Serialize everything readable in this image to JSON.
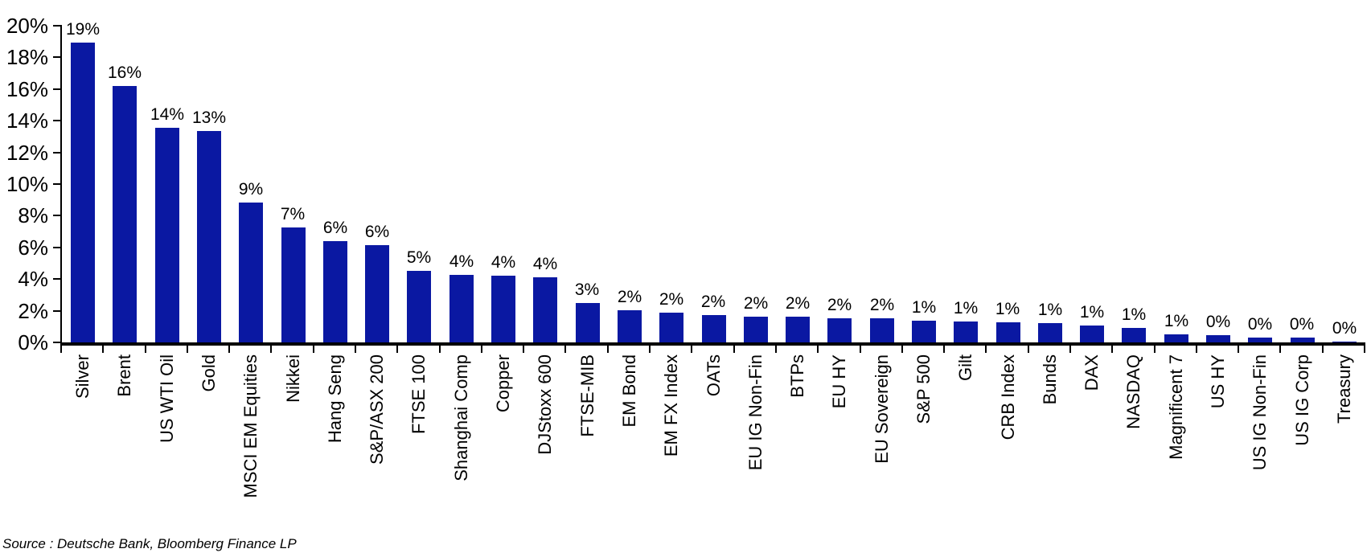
{
  "chart_data": {
    "type": "bar",
    "title": "",
    "xlabel": "",
    "ylabel": "",
    "ylim": [
      0,
      20
    ],
    "grid": false,
    "legend_position": "none",
    "bar_color": "#0a18a2",
    "axis_color": "#000000",
    "categories": [
      "Silver",
      "Brent",
      "US WTI Oil",
      "Gold",
      "MSCI EM Equities",
      "Nikkei",
      "Hang Seng",
      "S&P/ASX 200",
      "FTSE 100",
      "Shanghai Comp",
      "Copper",
      "DJStoxx 600",
      "FTSE-MIB",
      "EM Bond",
      "EM FX Index",
      "OATs",
      "EU IG Non-Fin",
      "BTPs",
      "EU HY",
      "EU Sovereign",
      "S&P 500",
      "Gilt",
      "CRB Index",
      "Bunds",
      "DAX",
      "NASDAQ",
      "Magnificent 7",
      "US HY",
      "US IG Non-Fin",
      "US IG Corp",
      "Treasury"
    ],
    "values": [
      18.95,
      16.2,
      13.55,
      13.35,
      8.85,
      7.25,
      6.4,
      6.15,
      4.5,
      4.25,
      4.2,
      4.1,
      2.5,
      2.05,
      1.9,
      1.75,
      1.6,
      1.6,
      1.5,
      1.5,
      1.35,
      1.3,
      1.25,
      1.2,
      1.05,
      0.9,
      0.5,
      0.45,
      0.3,
      0.28,
      0.05
    ],
    "value_labels": [
      "19%",
      "16%",
      "14%",
      "13%",
      "9%",
      "7%",
      "6%",
      "6%",
      "5%",
      "4%",
      "4%",
      "4%",
      "3%",
      "2%",
      "2%",
      "2%",
      "2%",
      "2%",
      "2%",
      "2%",
      "1%",
      "1%",
      "1%",
      "1%",
      "1%",
      "1%",
      "1%",
      "0%",
      "0%",
      "0%",
      "0%"
    ],
    "yticks": [
      {
        "value": 0,
        "label": "0%"
      },
      {
        "value": 2,
        "label": "2%"
      },
      {
        "value": 4,
        "label": "4%"
      },
      {
        "value": 6,
        "label": "6%"
      },
      {
        "value": 8,
        "label": "8%"
      },
      {
        "value": 10,
        "label": "10%"
      },
      {
        "value": 12,
        "label": "12%"
      },
      {
        "value": 14,
        "label": "14%"
      },
      {
        "value": 16,
        "label": "16%"
      },
      {
        "value": 18,
        "label": "18%"
      },
      {
        "value": 20,
        "label": "20%"
      }
    ]
  },
  "source_text": "Source : Deutsche Bank, Bloomberg Finance LP"
}
